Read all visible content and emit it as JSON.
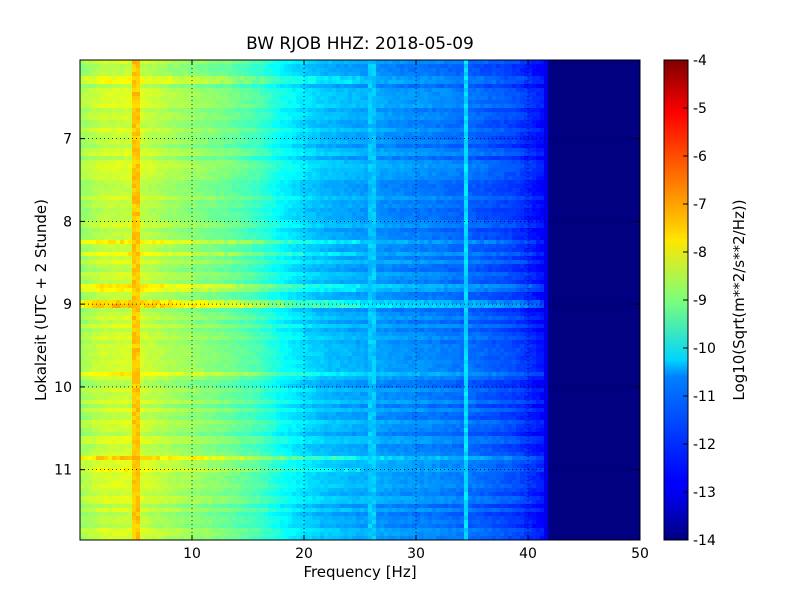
{
  "chart_data": {
    "type": "heatmap",
    "title": "BW RJOB HHZ: 2018-05-09",
    "xlabel": "Frequency [Hz]",
    "ylabel": "Lokalzeit (UTC + 2 Stunde)",
    "xlim": [
      0,
      50
    ],
    "ylim": [
      6.05,
      11.85
    ],
    "y_inverted": true,
    "x_ticks": [
      "10",
      "20",
      "30",
      "40",
      "50"
    ],
    "y_ticks": [
      "7",
      "8",
      "9",
      "10",
      "11"
    ],
    "grid": true,
    "colormap": "jet",
    "colorbar": {
      "label": "Log10(Sqrt(m**2/s**2/Hz))",
      "range": [
        -14,
        -4
      ],
      "ticks": [
        "-4",
        "-5",
        "-6",
        "-7",
        "-8",
        "-9",
        "-10",
        "-11",
        "-12",
        "-13",
        "-14"
      ]
    },
    "spectrum_profile": {
      "frequency_hz": [
        0,
        2,
        5,
        8,
        10,
        13,
        16,
        18,
        20,
        22,
        25,
        28,
        32,
        36,
        39,
        41.5,
        42,
        50
      ],
      "log10_amplitude": [
        -8.7,
        -8.3,
        -8.2,
        -8.6,
        -8.8,
        -9.1,
        -9.6,
        -10.2,
        -10.6,
        -10.9,
        -11.1,
        -11.3,
        -11.5,
        -11.8,
        -12.1,
        -12.7,
        -14,
        -14
      ]
    },
    "features": [
      {
        "frequency_hz": 5.0,
        "log10_amplitude": -7.2
      },
      {
        "frequency_hz": 26.0,
        "log10_amplitude": -10.8
      },
      {
        "frequency_hz": 34.5,
        "log10_amplitude": -10.6
      }
    ],
    "events": [
      {
        "time": 6.3,
        "log10_amplitude_delta": 0.6
      },
      {
        "time": 8.25,
        "log10_amplitude_delta": 0.8
      },
      {
        "time": 8.4,
        "log10_amplitude_delta": 0.7
      },
      {
        "time": 8.8,
        "log10_amplitude_delta": 0.6
      },
      {
        "time": 9.0,
        "log10_amplitude_delta": 0.9
      },
      {
        "time": 9.85,
        "log10_amplitude_delta": 0.5
      },
      {
        "time": 10.85,
        "log10_amplitude_delta": 1.1
      },
      {
        "time": 11.0,
        "log10_amplitude_delta": 0.6
      }
    ]
  }
}
